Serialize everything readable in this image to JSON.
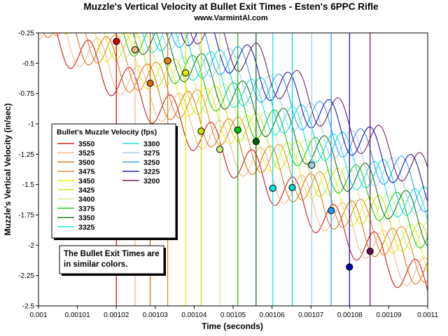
{
  "chart_data": {
    "type": "line",
    "title": "Muzzle's Vertical Velocity at Bullet Exit Times - Esten's 6PPC Rifle",
    "subtitle": "www.VarmintAl.com",
    "xlabel": "Time (seconds)",
    "ylabel": "Muzzle's Vertical Velocity (in/sec)",
    "xlim": [
      0.001,
      0.0011
    ],
    "ylim": [
      -2.5,
      -0.25
    ],
    "x_ticks": [
      "0.001",
      "0.00101",
      "0.00102",
      "0.00103",
      "0.00104",
      "0.00105",
      "0.00106",
      "0.00107",
      "0.00108",
      "0.00109",
      "0.0011"
    ],
    "y_ticks": [
      "-0.25",
      "-0.5",
      "-0.75",
      "-1",
      "-1.25",
      "-1.5",
      "-1.75",
      "-2",
      "-2.25",
      "-2.5"
    ],
    "grid": false,
    "legend": {
      "title": "Bullet's Muzzle Velocity (fps)",
      "placement": "center-left"
    },
    "note": [
      "The Bullet Exit Times are",
      "in similar colors."
    ],
    "series": [
      {
        "name": "3550",
        "color": "#cc0000",
        "exit_time": 0.00102,
        "exit_velocity": -0.32
      },
      {
        "name": "3525",
        "color": "#f4b183",
        "exit_time": 0.0010248,
        "exit_velocity": -0.39
      },
      {
        "name": "3500",
        "color": "#d46a00",
        "exit_time": 0.0010287,
        "exit_velocity": -0.665
      },
      {
        "name": "3475",
        "color": "#e87c1e",
        "exit_time": 0.0010332,
        "exit_velocity": -0.48
      },
      {
        "name": "3450",
        "color": "#e8e800",
        "exit_time": 0.0010378,
        "exit_velocity": -0.58
      },
      {
        "name": "3425",
        "color": "#c8dc00",
        "exit_time": 0.0010418,
        "exit_velocity": -1.06
      },
      {
        "name": "3400",
        "color": "#c8f07a",
        "exit_time": 0.0010466,
        "exit_velocity": -1.21
      },
      {
        "name": "3375",
        "color": "#00c800",
        "exit_time": 0.0010512,
        "exit_velocity": -1.05
      },
      {
        "name": "3350",
        "color": "#006400",
        "exit_time": 0.0010559,
        "exit_velocity": -1.145
      },
      {
        "name": "3325",
        "color": "#00e5e5",
        "exit_time": 0.0010602,
        "exit_velocity": -1.53
      },
      {
        "name": "3300",
        "color": "#00d2d2",
        "exit_time": 0.0010652,
        "exit_velocity": -1.525
      },
      {
        "name": "3275",
        "color": "#9ec8e6",
        "exit_time": 0.0010702,
        "exit_velocity": -1.34
      },
      {
        "name": "3250",
        "color": "#1e90ff",
        "exit_time": 0.0010752,
        "exit_velocity": -1.715
      },
      {
        "name": "3225",
        "color": "#0000b4",
        "exit_time": 0.0010799,
        "exit_velocity": -2.18
      },
      {
        "name": "3200",
        "color": "#640a50",
        "exit_time": 0.0010852,
        "exit_velocity": -2.05
      }
    ]
  }
}
